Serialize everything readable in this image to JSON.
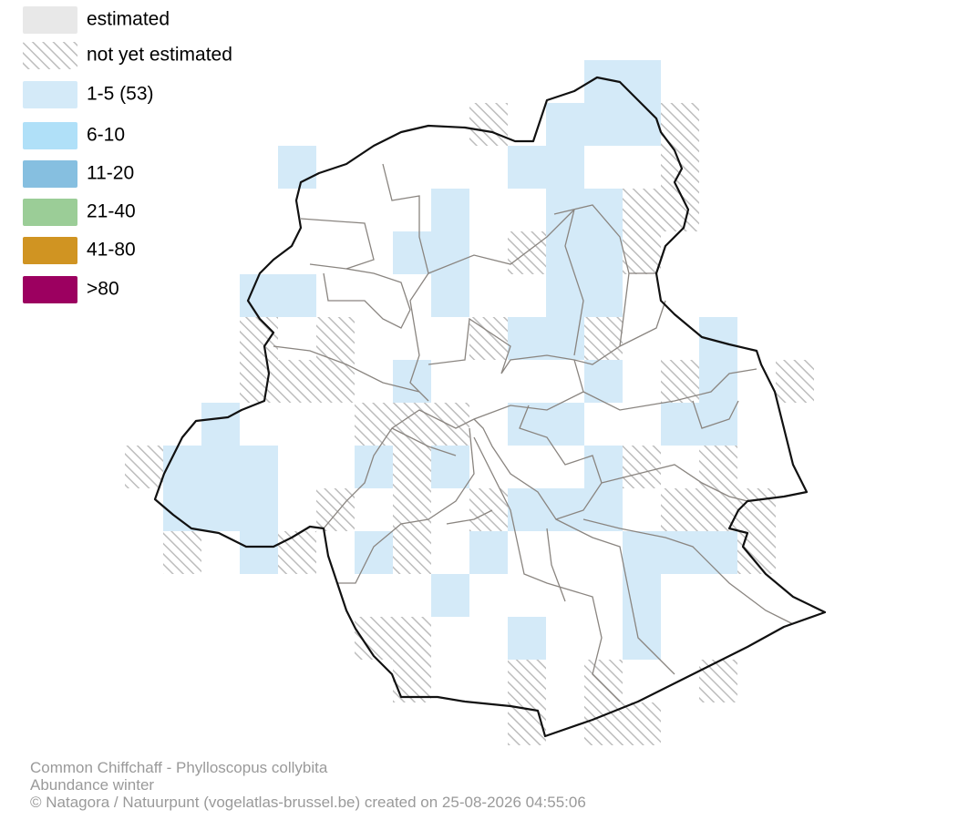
{
  "legend": [
    {
      "label": "estimated",
      "color": "#e8e8e8"
    },
    {
      "label": "not yet estimated"
    },
    {
      "label": "1-5 (53)",
      "color": "#d4eaf8"
    },
    {
      "label": "6-10",
      "color": "#b0e0f8"
    },
    {
      "label": "11-20",
      "color": "#86bfe0"
    },
    {
      "label": "21-40",
      "color": "#9bcd97"
    },
    {
      "label": "41-80",
      "color": "#d09422"
    },
    {
      "label": ">80",
      "color": "#9c0060"
    }
  ],
  "footer": [
    "Common Chiffchaff - Phylloscopus collybita",
    "Abundance winter",
    "© Natagora / Natuurpunt (vogelatlas-brussel.be) created on 25-08-2026 04:55:06"
  ]
}
